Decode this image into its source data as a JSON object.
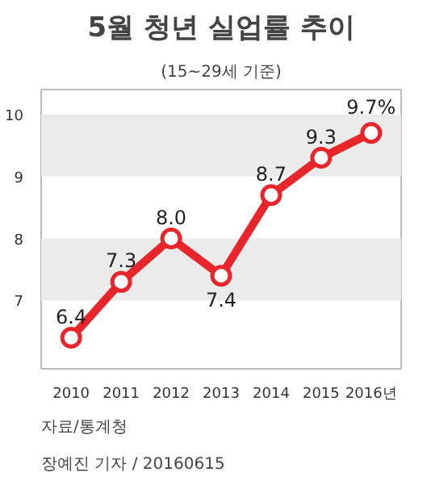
{
  "chart_data": {
    "type": "line",
    "title": "5월 청년 실업률 추이",
    "subtitle": "(15~29세 기준)",
    "categories": [
      "2010",
      "2011",
      "2012",
      "2013",
      "2014",
      "2015",
      "2016년"
    ],
    "series": [
      {
        "color": "#e8252a",
        "values": [
          6.4,
          7.3,
          8.0,
          7.4,
          8.7,
          9.3,
          9.7
        ],
        "value_labels": [
          "6.4",
          "7.3",
          "8.0",
          "7.4",
          "8.7",
          "9.3",
          "9.7%"
        ]
      }
    ],
    "ylim": [
      5.9,
      10.4
    ],
    "yticks": [
      7,
      8,
      9,
      10
    ],
    "bands": [
      {
        "axis": "y",
        "from": 7,
        "to": 8,
        "color": "#ebebeb"
      },
      {
        "axis": "y",
        "from": 9,
        "to": 10,
        "color": "#ebebeb"
      }
    ],
    "marker": "circle",
    "line_style": "solid",
    "grid": false,
    "annotations": [
      "자료/통계청",
      "장예진 기자 / 20160615"
    ]
  }
}
